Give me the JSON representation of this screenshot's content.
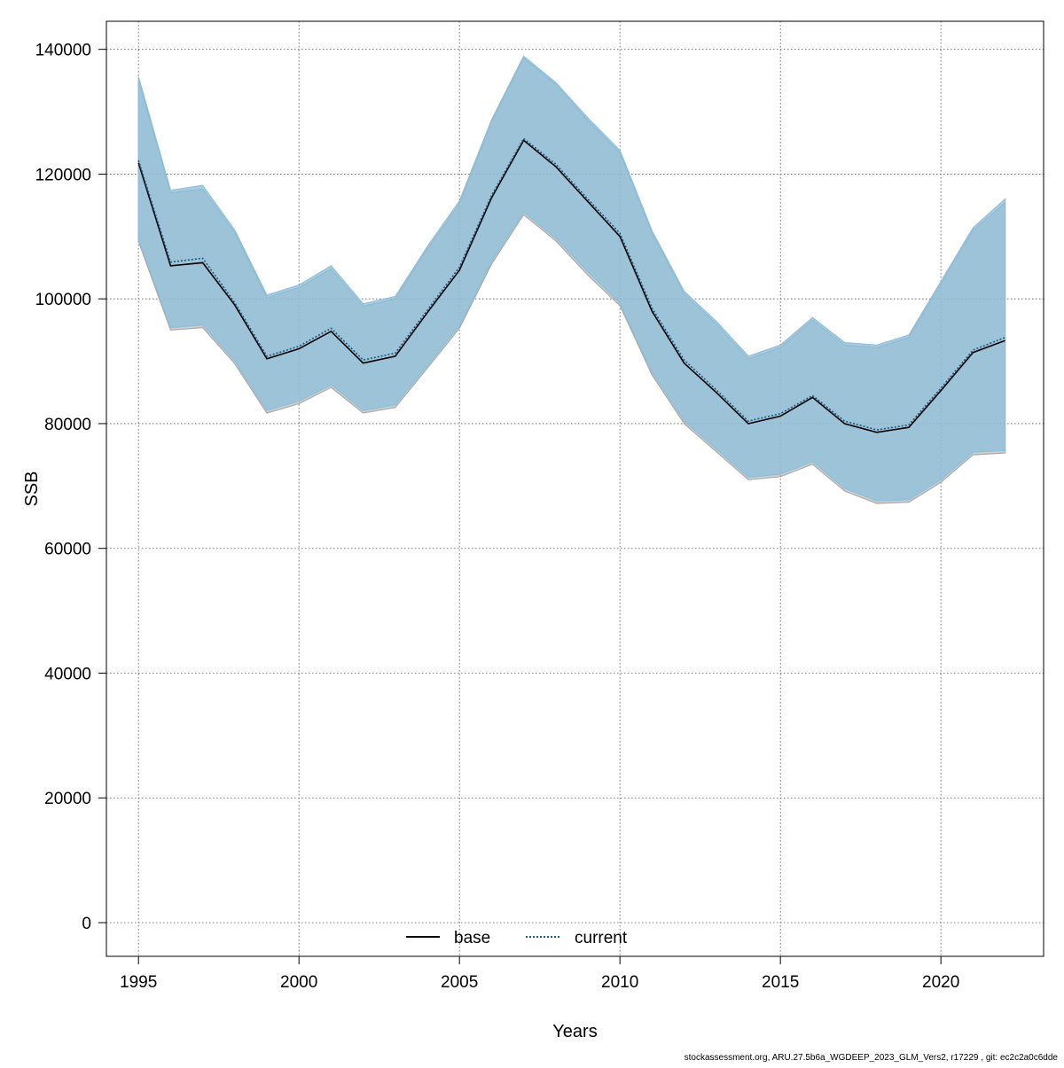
{
  "chart_data": {
    "type": "line",
    "title": "",
    "xlabel": "Years",
    "ylabel": "SSB",
    "xlim": [
      1994,
      2023.2
    ],
    "ylim": [
      -5400,
      144500
    ],
    "x_ticks": [
      1995,
      2000,
      2005,
      2010,
      2015,
      2020
    ],
    "y_ticks": [
      0,
      20000,
      40000,
      60000,
      80000,
      100000,
      120000,
      140000
    ],
    "x_tick_labels": [
      "1995",
      "2000",
      "2005",
      "2010",
      "2015",
      "2020"
    ],
    "y_tick_labels": [
      "0",
      "20000",
      "40000",
      "60000",
      "80000",
      "100000",
      "120000",
      "140000"
    ],
    "grid": true,
    "legend_position": "bottom-center",
    "x": [
      1995,
      1996,
      1997,
      1998,
      1999,
      2000,
      2001,
      2002,
      2003,
      2004,
      2005,
      2006,
      2007,
      2008,
      2009,
      2010,
      2011,
      2012,
      2013,
      2014,
      2015,
      2016,
      2017,
      2018,
      2019,
      2020,
      2021,
      2022
    ],
    "series": [
      {
        "name": "base",
        "color": "#000000",
        "line_style": "solid",
        "values": [
          121800,
          105300,
          105800,
          99000,
          90400,
          92000,
          94800,
          89700,
          90800,
          97800,
          104600,
          116200,
          125400,
          121200,
          115600,
          110000,
          98000,
          89700,
          85000,
          80000,
          81200,
          84200,
          80000,
          78600,
          79400,
          85300,
          91400,
          93300
        ],
        "upper": [
          135200,
          117000,
          117600,
          110600,
          100200,
          101800,
          104800,
          98800,
          100000,
          108000,
          115200,
          128400,
          138600,
          134400,
          128600,
          123400,
          110500,
          100800,
          96000,
          90400,
          92200,
          96600,
          92600,
          92200,
          93800,
          102400,
          111000,
          115400
        ],
        "lower": [
          109200,
          95000,
          95400,
          89600,
          81700,
          83200,
          85800,
          81700,
          82600,
          88900,
          95300,
          105600,
          113500,
          109300,
          103800,
          98900,
          87800,
          80000,
          75500,
          71000,
          71500,
          73500,
          69200,
          67200,
          67400,
          70600,
          75000,
          75300
        ]
      },
      {
        "name": "current",
        "color": "#1a5a86",
        "line_style": "dotted",
        "values": [
          122200,
          105900,
          106500,
          99400,
          90800,
          92400,
          95300,
          90200,
          91300,
          98200,
          105100,
          116600,
          125700,
          121600,
          116000,
          110500,
          98500,
          90200,
          85400,
          80400,
          81600,
          84500,
          80400,
          79000,
          79800,
          85700,
          91800,
          93800
        ],
        "upper": [
          135600,
          117400,
          118200,
          111000,
          100600,
          102200,
          105300,
          99200,
          100400,
          108400,
          115700,
          128700,
          138900,
          134700,
          129000,
          123800,
          110900,
          101200,
          96400,
          90800,
          92600,
          97000,
          93000,
          92600,
          94200,
          102800,
          111400,
          116000
        ],
        "lower": [
          109600,
          95400,
          95800,
          90000,
          82100,
          83600,
          86200,
          82100,
          83000,
          89300,
          95700,
          106000,
          113900,
          109700,
          104300,
          99300,
          88200,
          80400,
          75900,
          71400,
          71900,
          73900,
          69600,
          67600,
          67800,
          71000,
          75400,
          75700
        ]
      }
    ],
    "band_colors": {
      "base": "#a9a9a9",
      "current": "#8cbfdb"
    }
  },
  "footer": {
    "source": "stockassessment.org, ARU.27.5b6a_WGDEEP_2023_GLM_Vers2, r17229 , git: ec2c2a0c6dde"
  }
}
